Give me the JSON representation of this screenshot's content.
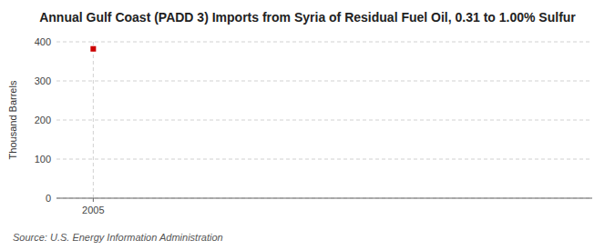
{
  "chart_data": {
    "type": "scatter",
    "title": "Annual Gulf Coast (PADD 3) Imports from Syria of Residual Fuel Oil, 0.31 to 1.00% Sulfur",
    "ylabel": "Thousand Barrels",
    "source": "Source: U.S. Energy Information Administration",
    "x": [
      2005
    ],
    "values": [
      382
    ],
    "color": "#cc0000",
    "marker": "square",
    "xlim": [
      2004.3,
      2014.5
    ],
    "xticks": [
      2005
    ],
    "ylim": [
      0,
      400
    ],
    "yticks": [
      0,
      100,
      200,
      300,
      400
    ],
    "grid": true
  }
}
